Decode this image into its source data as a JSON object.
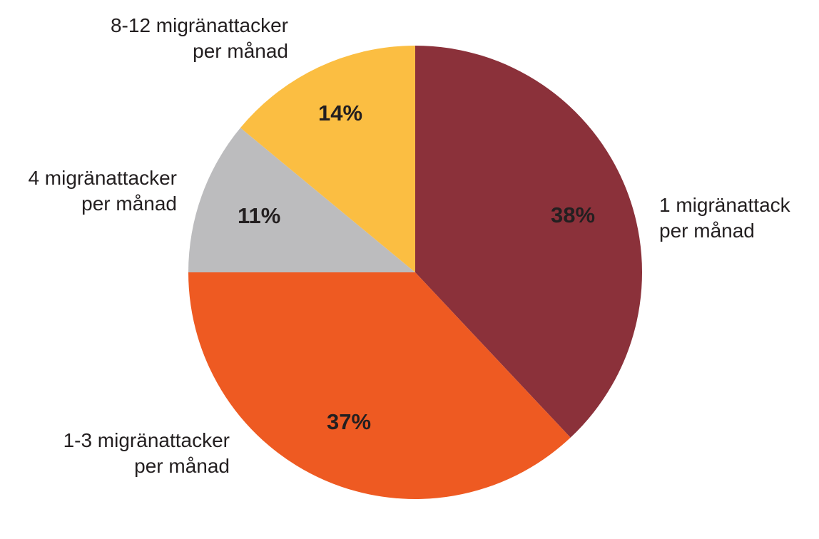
{
  "chart_data": {
    "type": "pie",
    "title": "",
    "categories": [
      "1 migränattack per månad",
      "1-3 migränattacker per månad",
      "4 migränattacker per månad",
      "8-12 migränattacker per månad"
    ],
    "values": [
      38,
      37,
      11,
      14
    ],
    "unit": "%",
    "colors": [
      "#8b313a",
      "#ee5a22",
      "#bcbcbe",
      "#fbbe42"
    ],
    "start_angle": "12 o'clock, clockwise"
  },
  "labels": {
    "s1_line1": "1 migränattack",
    "s1_line2": "per månad",
    "s1_pct": "38%",
    "s2_line1": "1-3 migränattacker",
    "s2_line2": "per månad",
    "s2_pct": "37%",
    "s3_line1": "4 migränattacker",
    "s3_line2": "per månad",
    "s3_pct": "11%",
    "s4_line1": "8-12 migränattacker",
    "s4_line2": "per månad",
    "s4_pct": "14%"
  }
}
